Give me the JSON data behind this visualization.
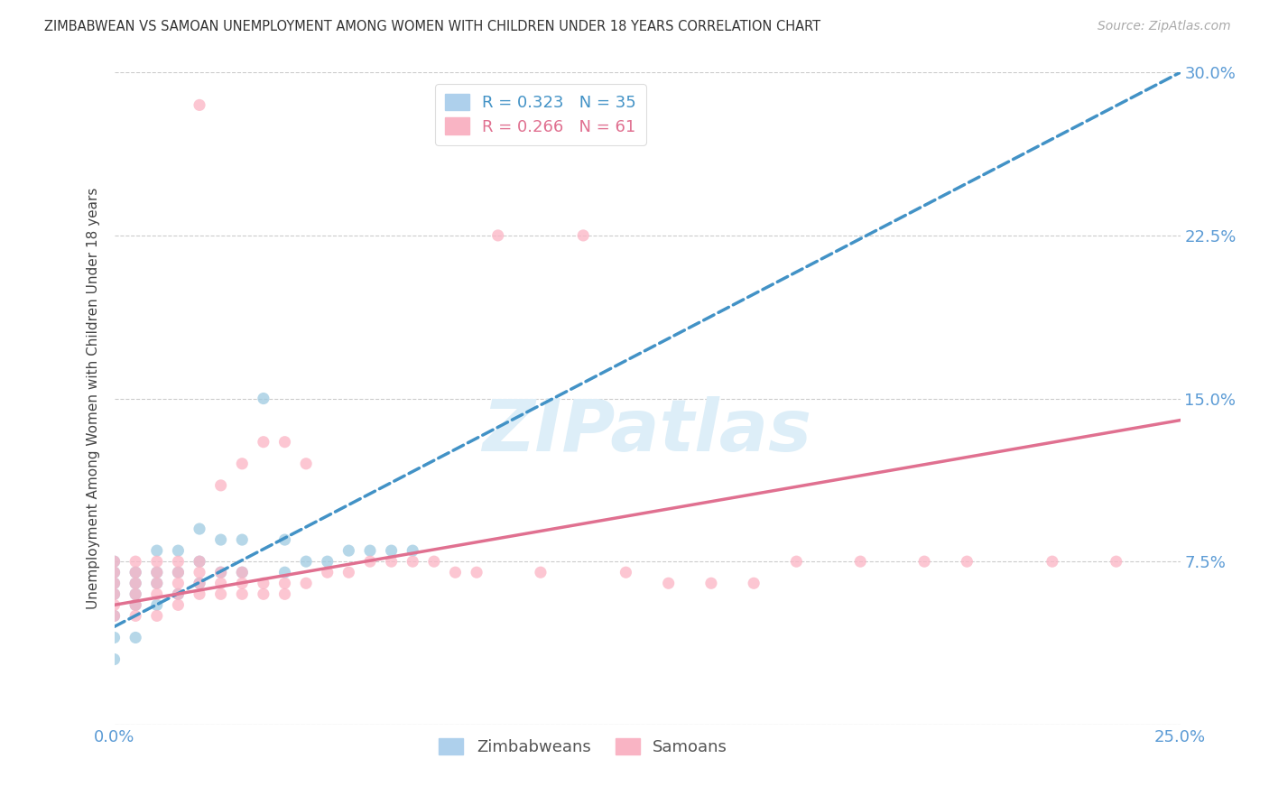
{
  "title": "ZIMBABWEAN VS SAMOAN UNEMPLOYMENT AMONG WOMEN WITH CHILDREN UNDER 18 YEARS CORRELATION CHART",
  "source": "Source: ZipAtlas.com",
  "ylabel": "Unemployment Among Women with Children Under 18 years",
  "xlim": [
    0.0,
    0.25
  ],
  "ylim": [
    0.0,
    0.3
  ],
  "yticks": [
    0.0,
    0.075,
    0.15,
    0.225,
    0.3
  ],
  "xticks": [
    0.0,
    0.05,
    0.1,
    0.15,
    0.2,
    0.25
  ],
  "zim_line_color": "#4292c6",
  "sam_line_color": "#e07090",
  "zim_scatter_color": "#9ecae1",
  "sam_scatter_color": "#fbb4c4",
  "background_color": "#ffffff",
  "grid_color": "#cccccc",
  "title_color": "#333333",
  "tick_label_color": "#5b9bd5",
  "watermark_color": "#ddeef8",
  "zim_x": [
    0.0,
    0.0,
    0.0,
    0.0,
    0.0,
    0.0,
    0.0,
    0.005,
    0.005,
    0.005,
    0.005,
    0.005,
    0.01,
    0.01,
    0.01,
    0.01,
    0.015,
    0.015,
    0.015,
    0.02,
    0.02,
    0.02,
    0.025,
    0.025,
    0.03,
    0.03,
    0.035,
    0.04,
    0.04,
    0.045,
    0.05,
    0.055,
    0.06,
    0.065,
    0.07
  ],
  "zim_y": [
    0.05,
    0.06,
    0.065,
    0.07,
    0.075,
    0.04,
    0.03,
    0.055,
    0.06,
    0.065,
    0.07,
    0.04,
    0.055,
    0.065,
    0.07,
    0.08,
    0.06,
    0.07,
    0.08,
    0.065,
    0.075,
    0.09,
    0.07,
    0.085,
    0.07,
    0.085,
    0.15,
    0.07,
    0.085,
    0.075,
    0.075,
    0.08,
    0.08,
    0.08,
    0.08
  ],
  "sam_x": [
    0.0,
    0.0,
    0.0,
    0.0,
    0.0,
    0.0,
    0.005,
    0.005,
    0.005,
    0.005,
    0.005,
    0.005,
    0.01,
    0.01,
    0.01,
    0.01,
    0.01,
    0.015,
    0.015,
    0.015,
    0.015,
    0.015,
    0.02,
    0.02,
    0.02,
    0.02,
    0.02,
    0.025,
    0.025,
    0.025,
    0.025,
    0.03,
    0.03,
    0.03,
    0.03,
    0.035,
    0.035,
    0.035,
    0.04,
    0.04,
    0.04,
    0.045,
    0.045,
    0.05,
    0.055,
    0.06,
    0.065,
    0.07,
    0.075,
    0.08,
    0.085,
    0.09,
    0.1,
    0.11,
    0.12,
    0.13,
    0.14,
    0.15,
    0.16,
    0.175,
    0.19,
    0.2,
    0.22,
    0.235
  ],
  "sam_y": [
    0.06,
    0.065,
    0.07,
    0.075,
    0.05,
    0.055,
    0.06,
    0.065,
    0.07,
    0.075,
    0.05,
    0.055,
    0.06,
    0.065,
    0.07,
    0.075,
    0.05,
    0.06,
    0.065,
    0.07,
    0.075,
    0.055,
    0.06,
    0.065,
    0.07,
    0.075,
    0.285,
    0.06,
    0.065,
    0.07,
    0.11,
    0.06,
    0.065,
    0.07,
    0.12,
    0.06,
    0.065,
    0.13,
    0.06,
    0.065,
    0.13,
    0.065,
    0.12,
    0.07,
    0.07,
    0.075,
    0.075,
    0.075,
    0.075,
    0.07,
    0.07,
    0.225,
    0.07,
    0.225,
    0.07,
    0.065,
    0.065,
    0.065,
    0.075,
    0.075,
    0.075,
    0.075,
    0.075,
    0.075
  ],
  "zim_line_x0": 0.0,
  "zim_line_y0": 0.045,
  "zim_line_x1": 0.25,
  "zim_line_y1": 0.3,
  "sam_line_x0": 0.0,
  "sam_line_y0": 0.055,
  "sam_line_x1": 0.25,
  "sam_line_y1": 0.14
}
